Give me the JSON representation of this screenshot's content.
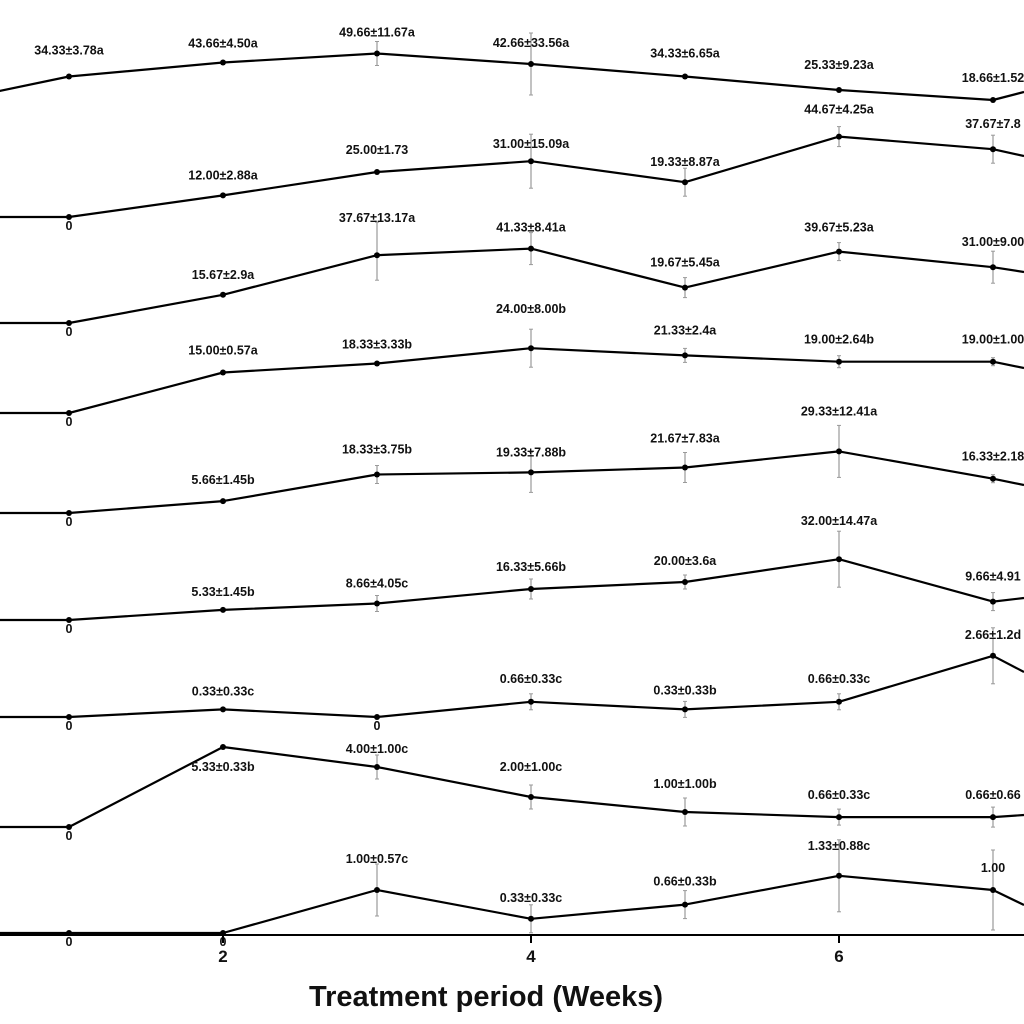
{
  "chart_data": {
    "type": "line",
    "xlabel": "Treatment period (Weeks)",
    "x_ticks": [
      2,
      4,
      6
    ],
    "x": [
      0,
      1,
      2,
      3,
      4,
      5,
      6,
      7,
      8
    ],
    "series": [
      {
        "values": [
          null,
          34.33,
          43.66,
          49.66,
          42.66,
          34.33,
          25.33,
          18.66,
          null
        ],
        "errors": [
          null,
          3.78,
          4.5,
          11.67,
          33.56,
          6.65,
          9.23,
          1.52,
          null
        ],
        "labels": [
          "",
          "34.33±3.78a",
          "43.66±4.50a",
          "49.66±11.67a",
          "42.66±33.56a",
          "34.33±6.65a",
          "25.33±9.23a",
          "18.66±1.52",
          ""
        ]
      },
      {
        "values": [
          0,
          0,
          12.0,
          25.0,
          31.0,
          19.33,
          44.67,
          37.67,
          null
        ],
        "errors": [
          null,
          null,
          2.88,
          1.73,
          15.09,
          8.87,
          4.25,
          7.8,
          null
        ],
        "labels": [
          "",
          "0",
          "12.00±2.88a",
          "25.00±1.73",
          "31.00±15.09a",
          "19.33±8.87a",
          "44.67±4.25a",
          "37.67±7.8",
          ""
        ]
      },
      {
        "values": [
          0,
          0,
          15.67,
          37.67,
          41.33,
          19.67,
          39.67,
          31.0,
          null
        ],
        "errors": [
          null,
          null,
          2.9,
          13.17,
          8.41,
          5.45,
          5.23,
          9.0,
          null
        ],
        "labels": [
          "",
          "0",
          "15.67±2.9a",
          "37.67±13.17a",
          "41.33±8.41a",
          "19.67±5.45a",
          "39.67±5.23a",
          "31.00±9.00",
          ""
        ]
      },
      {
        "values": [
          0,
          0,
          15.0,
          18.33,
          24.0,
          21.33,
          19.0,
          19.0,
          null
        ],
        "errors": [
          null,
          null,
          0.57,
          3.33,
          8.0,
          2.4,
          2.64,
          1.0,
          null
        ],
        "labels": [
          "",
          "0",
          "15.00±0.57a",
          "18.33±3.33b",
          "24.00±8.00b",
          "21.33±2.4a",
          "19.00±2.64b",
          "19.00±1.00",
          ""
        ]
      },
      {
        "values": [
          0,
          0,
          5.66,
          18.33,
          19.33,
          21.67,
          29.33,
          16.33,
          null
        ],
        "errors": [
          null,
          null,
          1.45,
          3.75,
          7.88,
          7.83,
          12.41,
          2.18,
          null
        ],
        "labels": [
          "",
          "0",
          "5.66±1.45b",
          "18.33±3.75b",
          "19.33±7.88b",
          "21.67±7.83a",
          "29.33±12.41a",
          "16.33±2.18",
          ""
        ]
      },
      {
        "values": [
          0,
          0,
          5.33,
          8.66,
          16.33,
          20.0,
          32.0,
          9.66,
          null
        ],
        "errors": [
          null,
          null,
          1.45,
          4.05,
          5.66,
          3.6,
          14.47,
          4.91,
          null
        ],
        "labels": [
          "",
          "0",
          "5.33±1.45b",
          "8.66±4.05c",
          "16.33±5.66b",
          "20.00±3.6a",
          "32.00±14.47a",
          "9.66±4.91",
          ""
        ]
      },
      {
        "values": [
          0,
          0,
          0.33,
          0,
          0.66,
          0.33,
          0.66,
          2.66,
          null
        ],
        "errors": [
          null,
          null,
          0.33,
          null,
          0.33,
          0.33,
          0.33,
          1.2,
          null
        ],
        "labels": [
          "",
          "0",
          "0.33±0.33c",
          "0",
          "0.66±0.33c",
          "0.33±0.33b",
          "0.66±0.33c",
          "2.66±1.2d",
          ""
        ]
      },
      {
        "values": [
          0,
          0,
          5.33,
          4.0,
          2.0,
          1.0,
          0.66,
          0.66,
          null
        ],
        "errors": [
          null,
          null,
          0.33,
          1.0,
          1.0,
          1.0,
          0.33,
          0.66,
          null
        ],
        "labels": [
          "",
          "0",
          "5.33±0.33b",
          "4.00±1.00c",
          "2.00±1.00c",
          "1.00±1.00b",
          "0.66±0.33c",
          "0.66±0.66",
          ""
        ]
      },
      {
        "values": [
          0,
          0,
          0,
          1.0,
          0.33,
          0.66,
          1.33,
          1.0,
          null
        ],
        "errors": [
          null,
          null,
          null,
          0.57,
          0.33,
          0.33,
          0.88,
          0.57,
          null
        ],
        "labels": [
          "",
          "0",
          "0",
          "1.00±0.57c",
          "0.33±0.33c",
          "0.66±0.33b",
          "1.33±0.88c",
          "1.00",
          ""
        ]
      }
    ],
    "grid": false,
    "legend": "none"
  }
}
